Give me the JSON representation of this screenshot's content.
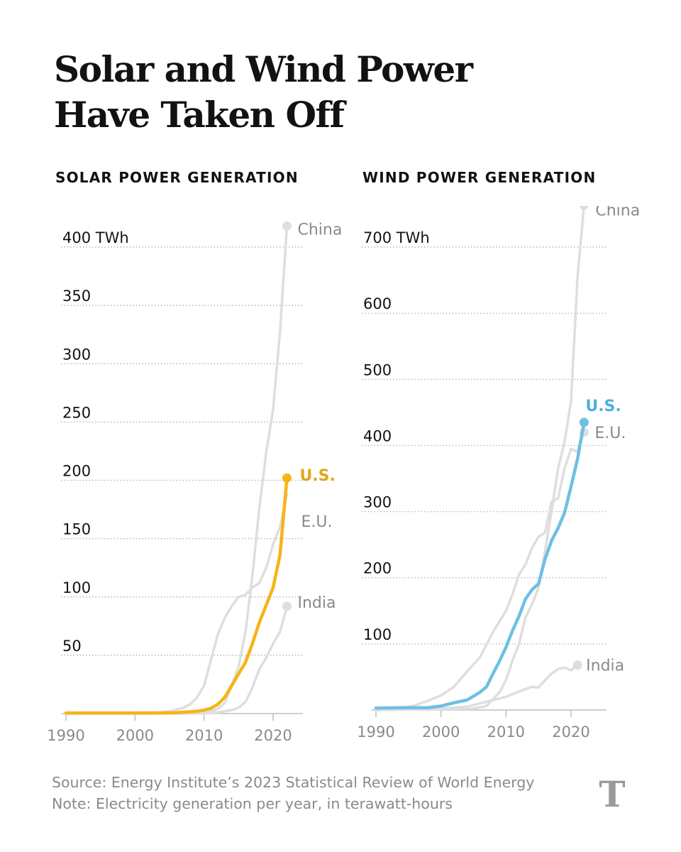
{
  "title_lines": [
    "Solar and Wind Power",
    "Have Taken Off"
  ],
  "footer": {
    "source": "Source: Energy Institute’s 2023 Statistical Review of World Energy",
    "note": "Note: Electricity generation per year, in terawatt-hours",
    "logo": "T"
  },
  "colors": {
    "us_solar": "#f6b416",
    "us_wind": "#6ec0e3",
    "other": "#dedede",
    "label_other": "#8a8a8a",
    "us_solar_label": "#e3a51e",
    "us_wind_label": "#4fb0d8"
  },
  "chart_data": [
    {
      "type": "line",
      "title": "SOLAR POWER GENERATION",
      "unit": "TWh",
      "xlim": [
        1990,
        2024
      ],
      "ylim": [
        0,
        410
      ],
      "x_ticks": [
        1990,
        2000,
        2010,
        2020
      ],
      "y_ticks": [
        50,
        100,
        150,
        200,
        250,
        300,
        350,
        400
      ],
      "y_tick_labels": [
        "50",
        "100",
        "150",
        "200",
        "250",
        "300",
        "350",
        "400 TWh"
      ],
      "series": [
        {
          "name": "China",
          "label": "China",
          "highlight": false,
          "end_marker": true,
          "x": [
            1990,
            2005,
            2007,
            2009,
            2010,
            2011,
            2012,
            2013,
            2014,
            2015,
            2016,
            2017,
            2018,
            2019,
            2020,
            2021,
            2022
          ],
          "y": [
            0,
            0,
            0,
            0.3,
            0.7,
            2,
            4,
            9,
            24,
            40,
            70,
            118,
            176,
            224,
            261,
            327,
            418
          ]
        },
        {
          "name": "E.U.",
          "label": "E.U.",
          "highlight": false,
          "end_marker": false,
          "x": [
            1990,
            2003,
            2005,
            2007,
            2008,
            2009,
            2010,
            2011,
            2012,
            2013,
            2014,
            2015,
            2016,
            2017,
            2018,
            2019,
            2020,
            2021,
            2022
          ],
          "y": [
            0,
            0.5,
            2,
            5,
            8,
            14,
            24,
            46,
            68,
            82,
            92,
            100,
            102,
            108,
            112,
            125,
            145,
            160,
            188
          ]
        },
        {
          "name": "India",
          "label": "India",
          "highlight": false,
          "end_marker": true,
          "x": [
            1990,
            2010,
            2012,
            2014,
            2015,
            2016,
            2017,
            2018,
            2019,
            2020,
            2021,
            2022
          ],
          "y": [
            0,
            0.1,
            1,
            3,
            5,
            10,
            22,
            38,
            48,
            60,
            70,
            92
          ]
        },
        {
          "name": "U.S.",
          "label": "U.S.",
          "highlight": true,
          "end_marker": true,
          "x": [
            1990,
            2000,
            2004,
            2006,
            2008,
            2009,
            2010,
            2011,
            2012,
            2013,
            2014,
            2015,
            2016,
            2017,
            2018,
            2019,
            2020,
            2021,
            2022
          ],
          "y": [
            0.5,
            0.5,
            0.6,
            0.8,
            1.5,
            2,
            3,
            4.5,
            8,
            14,
            24,
            34,
            44,
            60,
            78,
            93,
            108,
            136,
            202
          ]
        }
      ]
    },
    {
      "type": "line",
      "title": "WIND POWER GENERATION",
      "unit": "TWh",
      "xlim": [
        1990,
        2024
      ],
      "ylim": [
        0,
        760
      ],
      "x_ticks": [
        1990,
        2000,
        2010,
        2020
      ],
      "y_ticks": [
        100,
        200,
        300,
        400,
        500,
        600,
        700
      ],
      "y_tick_labels": [
        "100",
        "200",
        "300",
        "400",
        "500",
        "600",
        "700 TWh"
      ],
      "series": [
        {
          "name": "China",
          "label": "China",
          "highlight": false,
          "end_marker": true,
          "x": [
            1990,
            2005,
            2007,
            2009,
            2010,
            2011,
            2012,
            2013,
            2014,
            2015,
            2016,
            2017,
            2018,
            2019,
            2020,
            2021,
            2022
          ],
          "y": [
            0,
            2,
            6,
            27,
            45,
            75,
            100,
            140,
            160,
            185,
            240,
            300,
            365,
            405,
            467,
            656,
            763
          ]
        },
        {
          "name": "E.U.",
          "label": "E.U.",
          "highlight": false,
          "end_marker": true,
          "x": [
            1990,
            1994,
            1996,
            1998,
            2000,
            2002,
            2004,
            2006,
            2008,
            2010,
            2011,
            2012,
            2013,
            2014,
            2015,
            2016,
            2017,
            2018,
            2019,
            2020,
            2021,
            2022
          ],
          "y": [
            1,
            3,
            7,
            14,
            22,
            35,
            58,
            80,
            118,
            150,
            175,
            205,
            220,
            245,
            262,
            268,
            315,
            320,
            365,
            395,
            390,
            420
          ]
        },
        {
          "name": "India",
          "label": "India",
          "highlight": false,
          "end_marker": true,
          "x": [
            1990,
            2000,
            2004,
            2006,
            2008,
            2010,
            2012,
            2014,
            2015,
            2016,
            2017,
            2018,
            2019,
            2020,
            2021
          ],
          "y": [
            0,
            2,
            5,
            10,
            15,
            20,
            28,
            35,
            34,
            45,
            55,
            62,
            64,
            60,
            68
          ]
        },
        {
          "name": "U.S.",
          "label": "U.S.",
          "highlight": true,
          "end_marker": true,
          "x": [
            1990,
            1994,
            1998,
            2000,
            2002,
            2004,
            2006,
            2007,
            2008,
            2009,
            2010,
            2011,
            2012,
            2013,
            2014,
            2015,
            2016,
            2017,
            2018,
            2019,
            2020,
            2021,
            2022
          ],
          "y": [
            3,
            3.5,
            3.5,
            6,
            11,
            15,
            27,
            35,
            55,
            74,
            95,
            120,
            142,
            168,
            182,
            191,
            228,
            256,
            275,
            298,
            338,
            380,
            435
          ]
        }
      ]
    }
  ]
}
